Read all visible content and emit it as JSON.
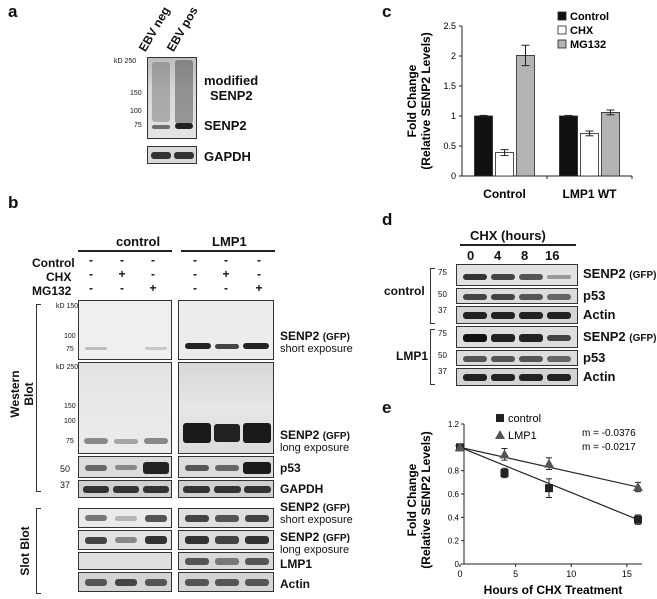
{
  "panel_a": {
    "label": "a",
    "lanes": [
      "EBV neg",
      "EBV pos"
    ],
    "markers": [
      "kD 250",
      "150",
      "100",
      "75"
    ],
    "labels": {
      "modified": "modified",
      "senp2_a": "SENP2",
      "senp2_b": "SENP2",
      "gapdh": "GAPDH"
    }
  },
  "panel_b": {
    "label": "b",
    "groups": [
      "control",
      "LMP1"
    ],
    "rows": [
      "Control",
      "CHX",
      "MG132"
    ],
    "signs": {
      "control": [
        "-",
        "-",
        "-"
      ],
      "chx": [
        "-",
        "+",
        "-"
      ],
      "mg132": [
        "-",
        "-",
        "+"
      ]
    },
    "markers_top": [
      "kD 150",
      "100",
      "75"
    ],
    "markers_mid": [
      "kD 250",
      "150",
      "100",
      "75"
    ],
    "markers_p53": [
      "50",
      "37"
    ],
    "side_wb_1": "Western",
    "side_wb_2": "Blot",
    "side_slot": "Slot Blot",
    "labels": {
      "senp2_gfp": "SENP2",
      "gfp": "(GFP)",
      "short_exposure": "short exposure",
      "long_exposure": "long exposure",
      "p53": "p53",
      "gapdh": "GAPDH",
      "lmp1": "LMP1",
      "actin": "Actin"
    }
  },
  "panel_c": {
    "label": "c",
    "chart_data": {
      "type": "bar",
      "categories": [
        "Control",
        "LMP1 WT"
      ],
      "series": [
        {
          "name": "Control",
          "values": [
            1.0,
            1.0
          ],
          "errors": [
            0.01,
            0.01
          ],
          "color": "#111111"
        },
        {
          "name": "CHX",
          "values": [
            0.39,
            0.71
          ],
          "errors": [
            0.05,
            0.04
          ],
          "color": "#ffffff"
        },
        {
          "name": "MG132",
          "values": [
            2.01,
            1.06
          ],
          "errors": [
            0.17,
            0.04
          ],
          "color": "#b3b3b3"
        }
      ],
      "ylabel_1": "Fold Change",
      "ylabel_2": "(Relative SENP2 Levels)",
      "ylim": [
        0,
        2.5
      ],
      "yticks": [
        "0",
        "0.5",
        "1",
        "1.5",
        "2",
        "2.5"
      ],
      "legend": "top-right"
    }
  },
  "panel_d": {
    "label": "d",
    "title": "CHX (hours)",
    "timepoints": [
      "0",
      "4",
      "8",
      "16"
    ],
    "groups": [
      "control",
      "LMP1"
    ],
    "markers": [
      "75",
      "50",
      "37"
    ],
    "labels": {
      "senp2": "SENP2",
      "gfp": "(GFP)",
      "p53": "p53",
      "actin": "Actin"
    }
  },
  "panel_e": {
    "label": "e",
    "chart_data": {
      "type": "line",
      "series": [
        {
          "name": "control",
          "x": [
            0,
            4,
            8,
            16
          ],
          "y": [
            1.0,
            0.78,
            0.65,
            0.38
          ],
          "err": [
            0.01,
            0.04,
            0.08,
            0.04
          ],
          "marker": "square"
        },
        {
          "name": "LMP1",
          "x": [
            0,
            4,
            8,
            16
          ],
          "y": [
            1.0,
            0.94,
            0.86,
            0.66
          ],
          "err": [
            0.01,
            0.05,
            0.05,
            0.04
          ],
          "marker": "triangle"
        }
      ],
      "xlabel": "Hours of CHX Treatment",
      "ylabel_1": "Fold Change",
      "ylabel_2": "(Relative SENP2 Levels)",
      "xlim": [
        0,
        16
      ],
      "ylim": [
        0,
        1.2
      ],
      "xticks": [
        "0",
        "5",
        "10",
        "15"
      ],
      "yticks": [
        "0",
        "0.2",
        "0.4",
        "0.6",
        "0.8",
        "1",
        "1.2"
      ],
      "annotations": [
        "m = -0.0376",
        "m = -0.0217"
      ],
      "legend": "top-center"
    }
  }
}
